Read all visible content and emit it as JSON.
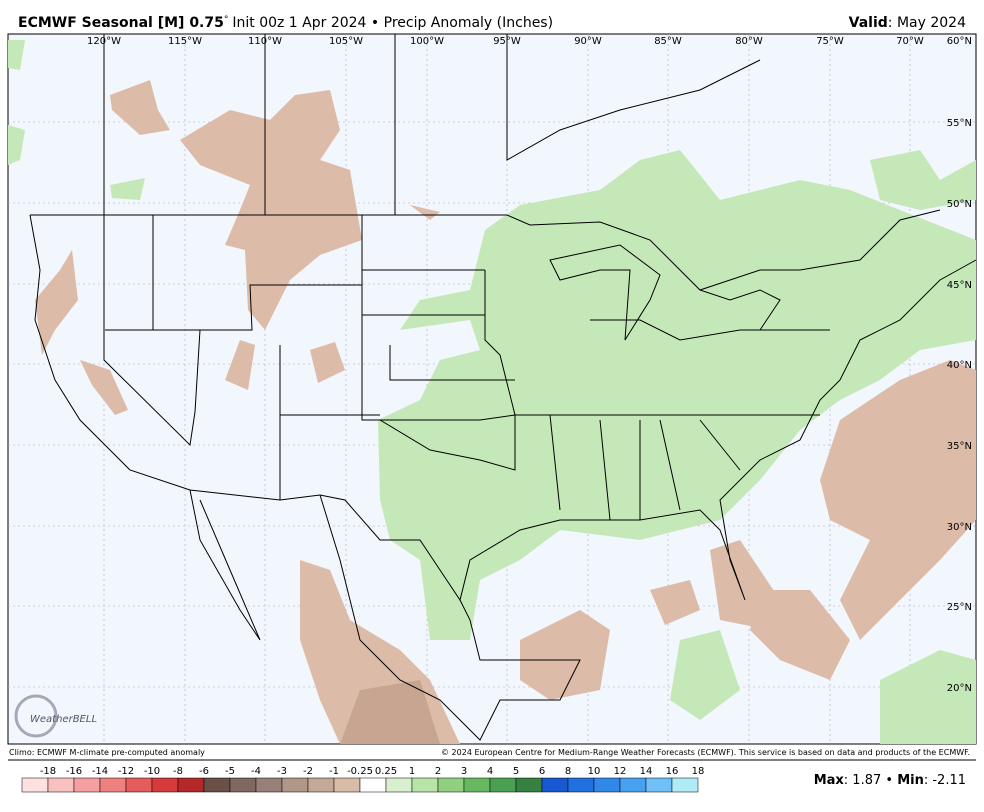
{
  "header": {
    "title_bold": "ECMWF Seasonal [M] 0.75",
    "title_degree": "°",
    "title_rest": "Init 00z 1 Apr 2024 • Precip Anomaly (Inches)",
    "valid_label": "Valid",
    "valid_value": ": May 2024"
  },
  "map": {
    "lon_labels": [
      "120°W",
      "115°W",
      "110°W",
      "105°W",
      "100°W",
      "95°W",
      "90°W",
      "85°W",
      "80°W",
      "75°W",
      "70°W"
    ],
    "lat_labels": [
      "60°N",
      "55°N",
      "50°N",
      "45°N",
      "40°N",
      "35°N",
      "30°N",
      "25°N",
      "20°N"
    ],
    "logo": "WeatherBELL"
  },
  "footer": {
    "climo": "Climo: ECMWF M-climate pre-computed anomaly",
    "copyright": "© 2024 European Centre for Medium-Range Weather Forecasts (ECMWF). This service is based on data and products of the ECMWF.",
    "max_label": "Max",
    "max_value": ": 1.87 • ",
    "min_label": "Min",
    "min_value": ": -2.11"
  },
  "legend": {
    "labels": [
      "-18",
      "-16",
      "-14",
      "-12",
      "-10",
      "-8",
      "-6",
      "-5",
      "-4",
      "-3",
      "-2",
      "-1",
      "-0.25",
      "0.25",
      "1",
      "2",
      "3",
      "4",
      "5",
      "6",
      "8",
      "10",
      "12",
      "14",
      "16",
      "18"
    ],
    "colors": [
      "#fde0e0",
      "#f9c0c0",
      "#f4a0a0",
      "#ee8080",
      "#e45c5c",
      "#d73a3a",
      "#b42828",
      "#6b5048",
      "#806860",
      "#988078",
      "#b09888",
      "#c4a898",
      "#d8bca8",
      "#ffffff",
      "#d8f0d0",
      "#b8e4a8",
      "#90d080",
      "#68b860",
      "#4aa050",
      "#388040",
      "#1858d0",
      "#2070e0",
      "#3088e8",
      "#48a0f0",
      "#70c0f8",
      "#b0ecf8"
    ]
  }
}
